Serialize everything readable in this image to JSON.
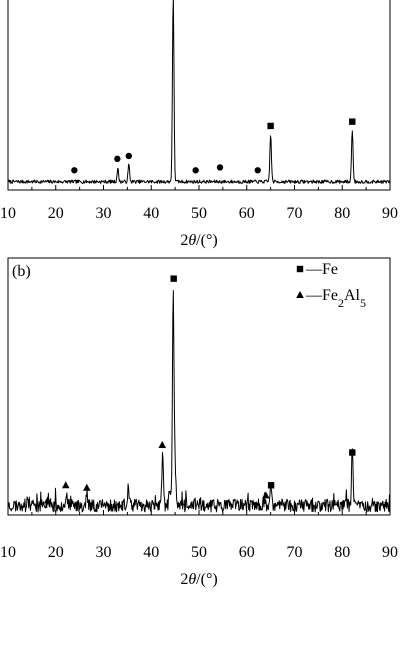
{
  "chart_data": [
    {
      "type": "line",
      "panel_label": "",
      "xlabel_parts": [
        "2",
        "θ",
        "/(°)"
      ],
      "xlim": [
        10,
        90
      ],
      "xticks": [
        10,
        20,
        30,
        40,
        50,
        60,
        70,
        80,
        90
      ],
      "xtick_labels": [
        "10",
        "20",
        "30",
        "40",
        "50",
        "60",
        "70",
        "80",
        "90"
      ],
      "ylim": [
        0,
        100
      ],
      "baseline": 3,
      "noise": 1.2,
      "seed": 7,
      "peaks": [
        {
          "x": 33.0,
          "height": 9
        },
        {
          "x": 35.3,
          "height": 12
        },
        {
          "x": 44.6,
          "height": 130
        },
        {
          "x": 65.0,
          "height": 33
        },
        {
          "x": 82.1,
          "height": 36
        }
      ],
      "markers": [
        {
          "x": 23.9,
          "y": 11,
          "shape": "circle"
        },
        {
          "x": 32.9,
          "y": 19,
          "shape": "circle"
        },
        {
          "x": 35.3,
          "y": 21,
          "shape": "circle"
        },
        {
          "x": 49.3,
          "y": 11,
          "shape": "circle"
        },
        {
          "x": 54.4,
          "y": 13,
          "shape": "circle"
        },
        {
          "x": 62.3,
          "y": 11,
          "shape": "circle"
        },
        {
          "x": 65.0,
          "y": 42,
          "shape": "square"
        },
        {
          "x": 82.1,
          "y": 45,
          "shape": "square"
        }
      ]
    },
    {
      "type": "line",
      "panel_label": "(b)",
      "xlabel_parts": [
        "2",
        "θ",
        "/(°)"
      ],
      "xlim": [
        10,
        90
      ],
      "xticks": [
        10,
        20,
        30,
        40,
        50,
        60,
        70,
        80,
        90
      ],
      "xtick_labels": [
        "10",
        "20",
        "30",
        "40",
        "50",
        "60",
        "70",
        "80",
        "90"
      ],
      "ylim": [
        0,
        100
      ],
      "baseline": 3,
      "noise": 2.6,
      "seed": 23,
      "peaks": [
        {
          "x": 18.5,
          "height": 3
        },
        {
          "x": 22.2,
          "height": 5
        },
        {
          "x": 26.5,
          "height": 5
        },
        {
          "x": 35.2,
          "height": 7
        },
        {
          "x": 42.4,
          "height": 22
        },
        {
          "x": 43.9,
          "height": 6
        },
        {
          "x": 44.6,
          "height": 87
        },
        {
          "x": 45.0,
          "height": 16
        },
        {
          "x": 63.8,
          "height": 3
        },
        {
          "x": 65.0,
          "height": 7
        },
        {
          "x": 82.1,
          "height": 21
        }
      ],
      "markers": [
        {
          "x": 18.3,
          "y": 5,
          "shape": "triangle"
        },
        {
          "x": 22.1,
          "y": 11,
          "shape": "triangle"
        },
        {
          "x": 26.5,
          "y": 10,
          "shape": "triangle"
        },
        {
          "x": 42.3,
          "y": 27,
          "shape": "triangle"
        },
        {
          "x": 44.7,
          "y": 93,
          "shape": "square"
        },
        {
          "x": 64.0,
          "y": 7,
          "shape": "triangle"
        },
        {
          "x": 65.1,
          "y": 11,
          "shape": "square"
        },
        {
          "x": 82.1,
          "y": 24,
          "shape": "square"
        }
      ],
      "legend": {
        "placement": "top-right",
        "entries": [
          {
            "shape": "square",
            "text_parts": [
              {
                "t": "—Fe",
                "sub": false
              }
            ]
          },
          {
            "shape": "triangle",
            "text_parts": [
              {
                "t": "—Fe",
                "sub": false
              },
              {
                "t": "2",
                "sub": true
              },
              {
                "t": "Al",
                "sub": false
              },
              {
                "t": "5",
                "sub": true
              }
            ]
          }
        ]
      }
    }
  ]
}
